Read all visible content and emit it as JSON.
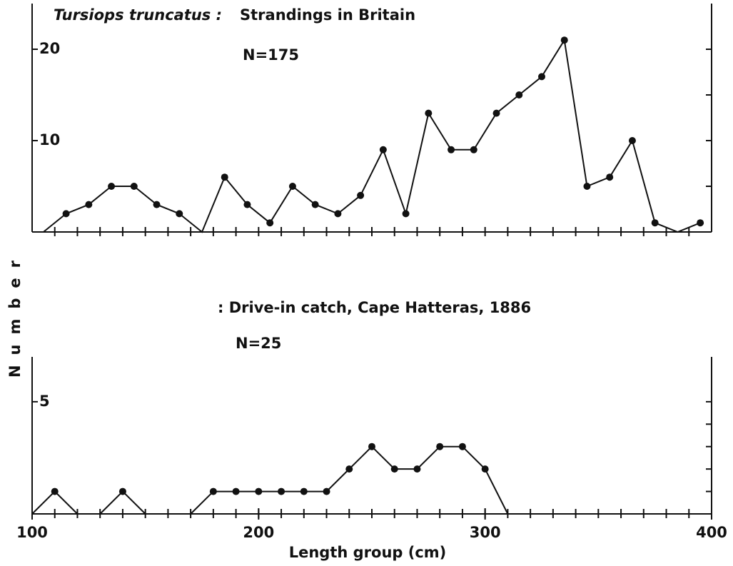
{
  "chart_data": [
    {
      "type": "line",
      "species": "Tursiops truncatus :",
      "title": "Strandings in Britain",
      "annotation": "N=175",
      "ylabel": "Number",
      "x": [
        105,
        115,
        125,
        135,
        145,
        155,
        165,
        175,
        185,
        195,
        205,
        215,
        225,
        235,
        245,
        255,
        265,
        275,
        285,
        295,
        305,
        315,
        325,
        335,
        345,
        355,
        365,
        375,
        385,
        395
      ],
      "values": [
        0,
        2,
        3,
        5,
        5,
        3,
        2,
        0,
        6,
        3,
        1,
        5,
        3,
        2,
        4,
        9,
        2,
        13,
        9,
        9,
        13,
        15,
        17,
        21,
        5,
        6,
        10,
        1,
        0,
        1
      ],
      "color": "#111111",
      "xlim": [
        100,
        400
      ],
      "ylim": [
        0,
        25
      ],
      "yticks": [
        10,
        20
      ],
      "yminor_ticks": [
        5,
        10,
        15,
        20
      ],
      "xminor_ticks": [
        110,
        120,
        130,
        140,
        150,
        160,
        170,
        180,
        190,
        200,
        210,
        220,
        230,
        240,
        250,
        260,
        270,
        280,
        290,
        300,
        310,
        320,
        330,
        340,
        350,
        360,
        370,
        380,
        390
      ]
    },
    {
      "type": "line",
      "title": ": Drive-in catch, Cape Hatteras, 1886",
      "annotation": "N=25",
      "xlabel": "Length group (cm)",
      "x": [
        100,
        110,
        120,
        125,
        130,
        140,
        150,
        160,
        170,
        180,
        190,
        200,
        210,
        220,
        230,
        240,
        250,
        260,
        270,
        280,
        290,
        300,
        310
      ],
      "values": [
        0,
        1,
        0,
        null,
        0,
        1,
        0,
        null,
        0,
        1,
        1,
        1,
        1,
        1,
        1,
        2,
        3,
        2,
        2,
        3,
        3,
        2,
        0
      ],
      "color": "#111111",
      "xlim": [
        100,
        400
      ],
      "ylim": [
        0,
        7
      ],
      "xticks": [
        100,
        200,
        300,
        400
      ],
      "yticks": [
        5
      ],
      "yminor_ticks": [
        1,
        2,
        3,
        4,
        5
      ],
      "xminor_ticks": [
        110,
        120,
        130,
        140,
        150,
        160,
        170,
        180,
        190,
        200,
        210,
        220,
        230,
        240,
        250,
        260,
        270,
        280,
        290,
        300,
        310,
        320,
        330,
        340,
        350,
        360,
        370,
        380,
        390
      ]
    }
  ]
}
